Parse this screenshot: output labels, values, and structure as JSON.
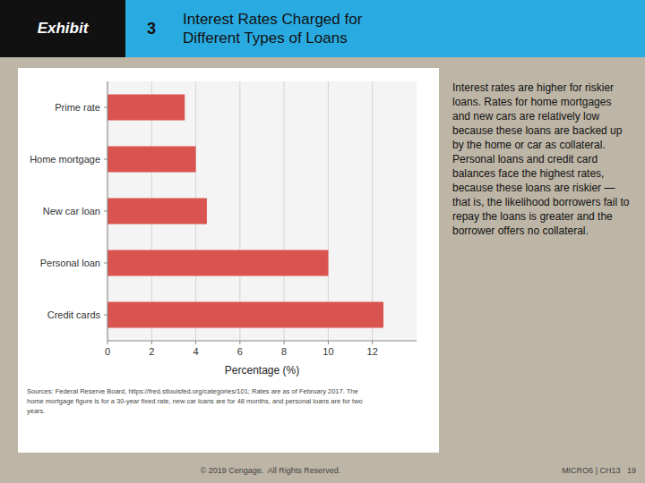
{
  "chart_data": {
    "type": "bar",
    "orientation": "horizontal",
    "title": "Interest Rates Charged for\nDifferent Types of Loans",
    "xlabel": "Percentage (%)",
    "categories": [
      "Credit cards",
      "Personal loan",
      "New car loan",
      "Home mortgage",
      "Prime rate"
    ],
    "values": [
      12.5,
      10.0,
      4.5,
      4.0,
      3.5
    ],
    "color": "#d9534f",
    "xlim": [
      0,
      14
    ],
    "xticks": [
      0,
      2,
      4,
      6,
      8,
      10,
      12
    ],
    "grid": true,
    "annotations": [
      "Exhibit",
      "3",
      "Sources: Federal Reserve Board, https://fred.stlouisfed.org/categories/101; Rates are as of February 2017. The\nhome mortgage figure is for a 30-year fixed rate, new car loans are for 48 months, and personal loans are for two\nyears.",
      "Interest rates are higher for riskier loans. Rates for home mortgages and new cars are relatively low because these loans are backed up by the home or car as collateral. Personal loans and credit card balances face the highest rates, because these loans are riskier —that is, the likelihood borrowers fail to repay the loans is greater and the borrower offers no collateral.",
      "© 2019 Cengage.  All Rights Reserved.",
      "MICRO6 | CH13   19"
    ]
  }
}
